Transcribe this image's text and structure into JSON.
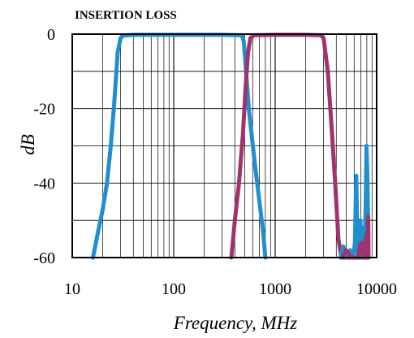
{
  "chart_data": {
    "type": "line",
    "title": "INSERTION LOSS",
    "xlabel": "Frequency, MHz",
    "ylabel": "dB",
    "x_scale": "log",
    "xlim": [
      10,
      10000
    ],
    "ylim": [
      -60,
      0
    ],
    "x_ticks": [
      "10",
      "100",
      "1000",
      "10000"
    ],
    "y_ticks": [
      "0",
      "-20",
      "-40",
      "-60"
    ],
    "grid": true,
    "legend": "none",
    "series": [
      {
        "color": "#1f8fd0",
        "points": [
          [
            16,
            -60
          ],
          [
            18,
            -53
          ],
          [
            20,
            -47
          ],
          [
            22,
            -40
          ],
          [
            24,
            -30
          ],
          [
            26,
            -18
          ],
          [
            28,
            -5
          ],
          [
            30,
            -1
          ],
          [
            32,
            -0.4
          ],
          [
            40,
            -0.2
          ],
          [
            100,
            -0.2
          ],
          [
            300,
            -0.2
          ],
          [
            470,
            -0.3
          ],
          [
            490,
            -2
          ],
          [
            510,
            -8
          ],
          [
            550,
            -20
          ],
          [
            620,
            -33
          ],
          [
            700,
            -45
          ],
          [
            760,
            -53
          ],
          [
            800,
            -60
          ]
        ]
      },
      {
        "color": "#a0336e",
        "points": [
          [
            370,
            -60
          ],
          [
            400,
            -50
          ],
          [
            440,
            -40
          ],
          [
            480,
            -27
          ],
          [
            510,
            -15
          ],
          [
            540,
            -5
          ],
          [
            570,
            -1
          ],
          [
            620,
            -0.3
          ],
          [
            1000,
            -0.2
          ],
          [
            2000,
            -0.2
          ],
          [
            2800,
            -0.3
          ],
          [
            3000,
            -1
          ],
          [
            3300,
            -10
          ],
          [
            3600,
            -25
          ],
          [
            3900,
            -40
          ],
          [
            4200,
            -55
          ],
          [
            4500,
            -60
          ],
          [
            8000,
            -60
          ]
        ]
      },
      {
        "color": "#1f8fd0",
        "points": [
          [
            4400,
            -60
          ],
          [
            4700,
            -57
          ],
          [
            5000,
            -60
          ],
          [
            5500,
            -58
          ],
          [
            5900,
            -60
          ],
          [
            6100,
            -56
          ],
          [
            6300,
            -38
          ],
          [
            6450,
            -55
          ],
          [
            6600,
            -60
          ],
          [
            6900,
            -50
          ],
          [
            7100,
            -60
          ],
          [
            7300,
            -52
          ],
          [
            7600,
            -59
          ],
          [
            7800,
            -46
          ],
          [
            7950,
            -30
          ],
          [
            8100,
            -38
          ],
          [
            8250,
            -52
          ],
          [
            8300,
            -60
          ]
        ]
      },
      {
        "color": "#a0336e",
        "points": [
          [
            4600,
            -60
          ],
          [
            5000,
            -58
          ],
          [
            5600,
            -60
          ],
          [
            6500,
            -60
          ],
          [
            7000,
            -56
          ],
          [
            7400,
            -60
          ],
          [
            7900,
            -54
          ],
          [
            8100,
            -60
          ],
          [
            8250,
            -49
          ],
          [
            8300,
            -60
          ]
        ]
      }
    ]
  }
}
